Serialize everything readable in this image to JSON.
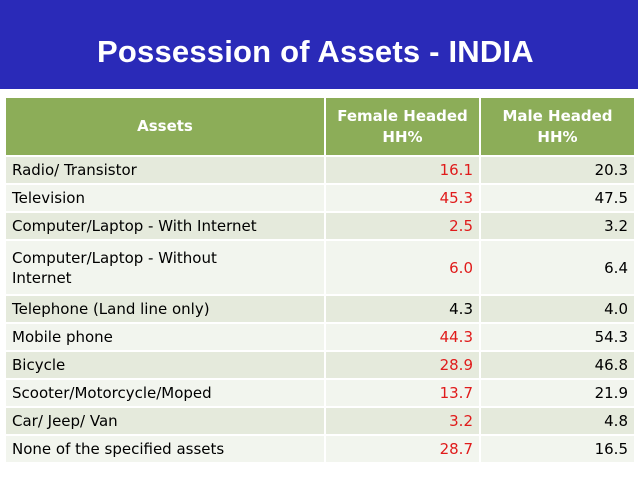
{
  "title": "Possession of Assets - INDIA",
  "colors": {
    "banner": "#2a2ab8",
    "header": "#8cad58",
    "female_value": "#e01b1b"
  },
  "table": {
    "headers": [
      "Assets",
      "Female Headed HH%",
      "Male Headed HH%"
    ],
    "rows": [
      {
        "asset": "Radio/ Transistor",
        "female": "16.1",
        "male": "20.3"
      },
      {
        "asset": "Television",
        "female": "45.3",
        "male": "47.5"
      },
      {
        "asset": "Computer/Laptop - With Internet",
        "female": "2.5",
        "male": "3.2"
      },
      {
        "asset": "Computer/Laptop - Without Internet",
        "female": "6.0",
        "male": "6.4"
      },
      {
        "asset": "Telephone (Land line only)",
        "female": "4.3",
        "male": "4.0"
      },
      {
        "asset": "Mobile phone",
        "female": "44.3",
        "male": "54.3"
      },
      {
        "asset": "Bicycle",
        "female": "28.9",
        "male": "46.8"
      },
      {
        "asset": "Scooter/Motorcycle/Moped",
        "female": "13.7",
        "male": "21.9"
      },
      {
        "asset": "Car/ Jeep/ Van",
        "female": "3.2",
        "male": "4.8"
      },
      {
        "asset": "None of the specified assets",
        "female": "28.7",
        "male": "16.5"
      }
    ]
  }
}
